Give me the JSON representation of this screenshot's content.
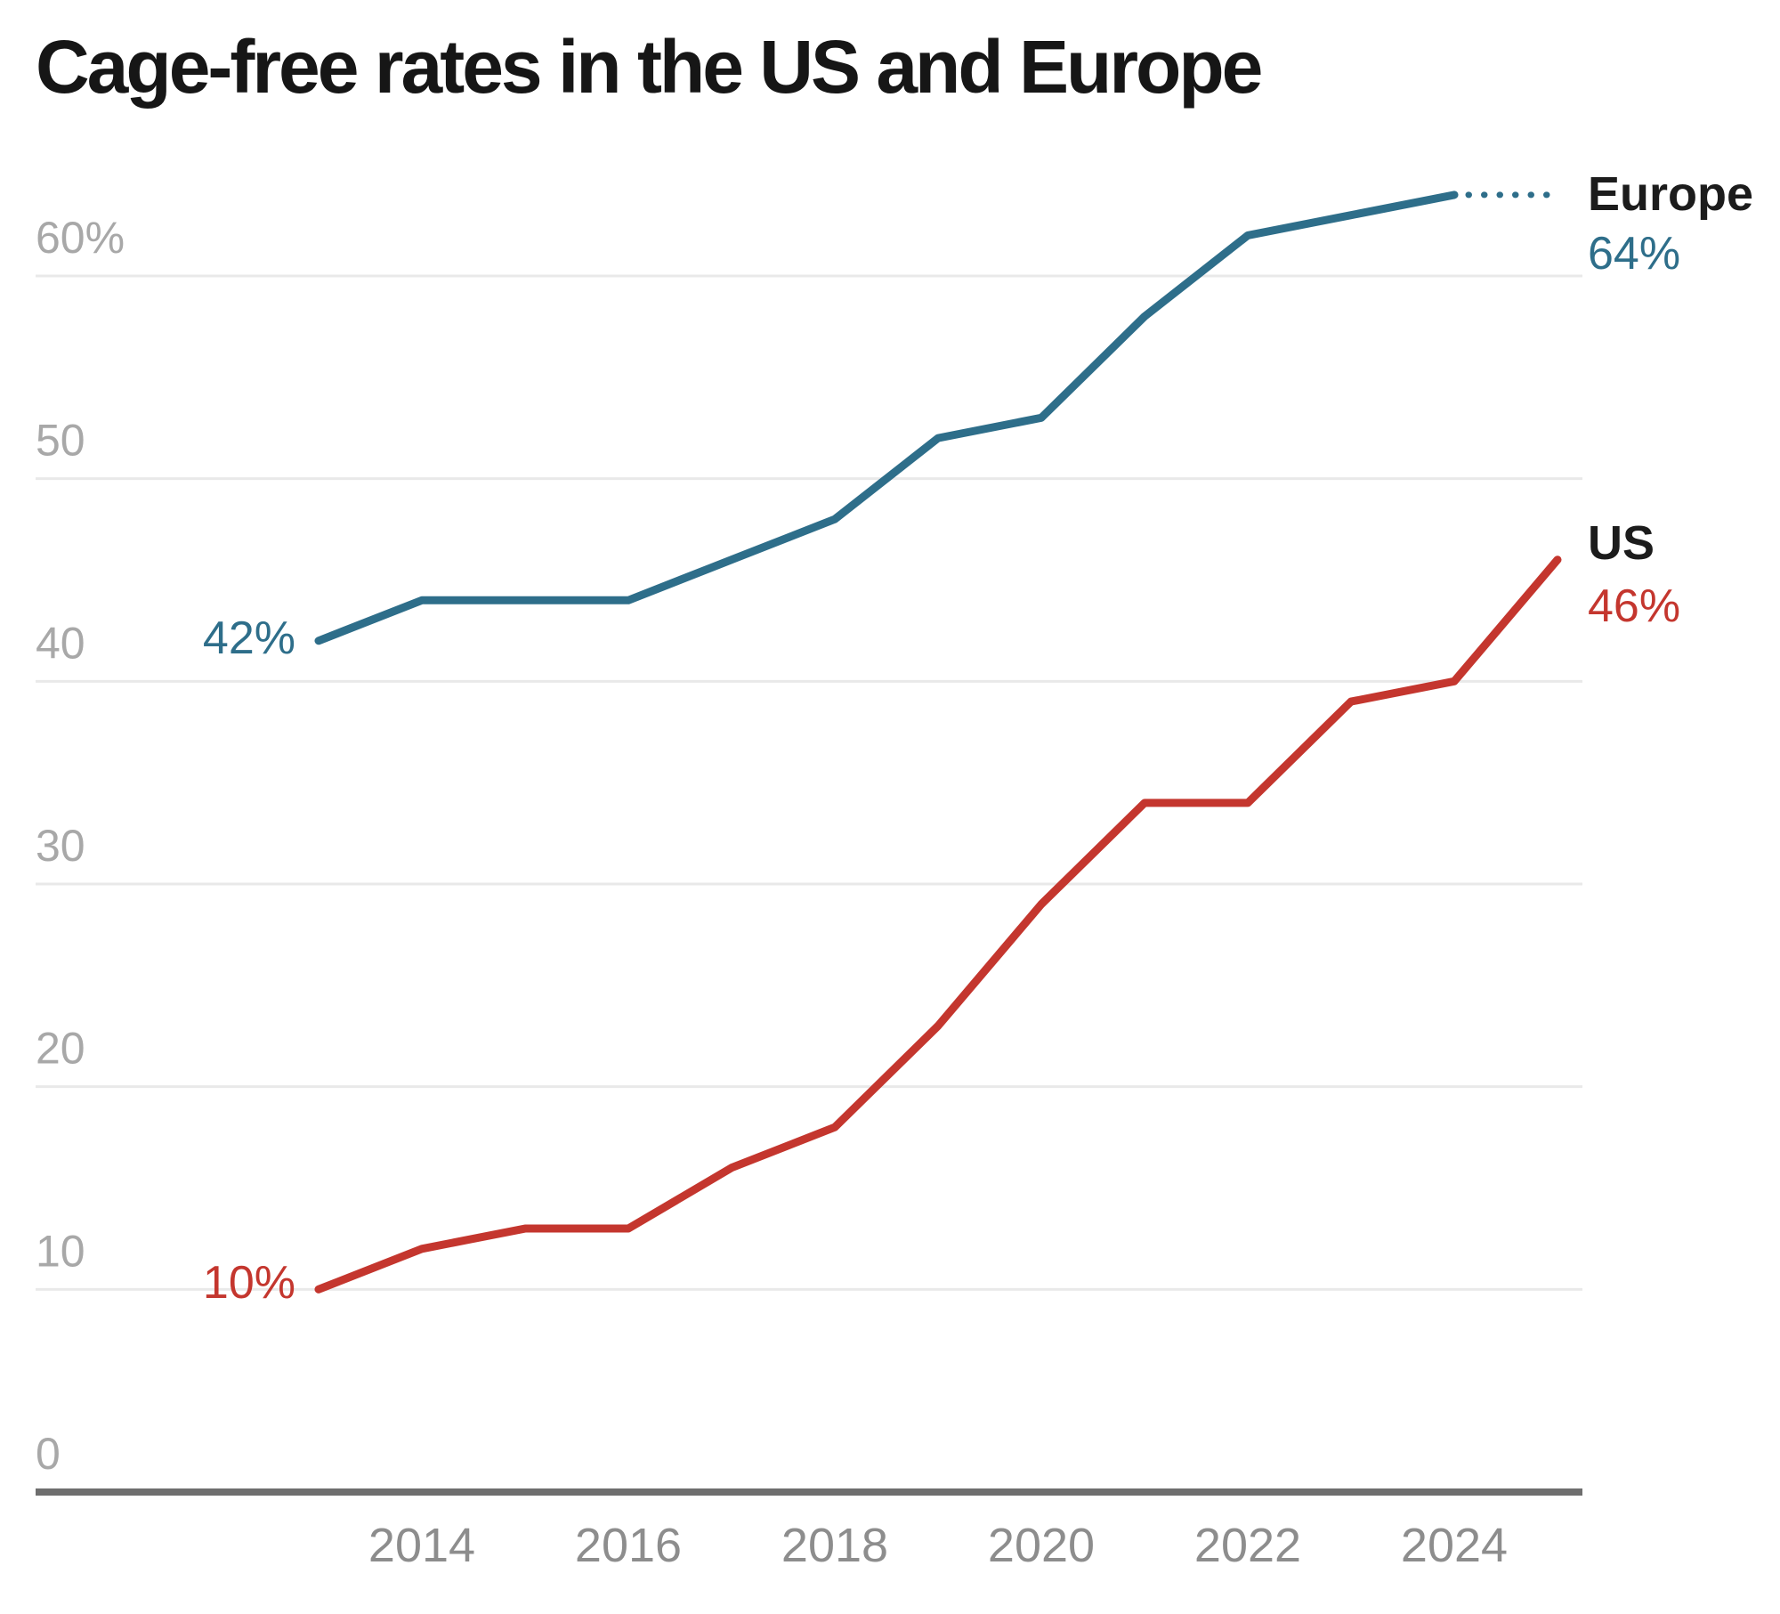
{
  "title": "Cage-free rates in the US and Europe",
  "colors": {
    "europe_line": "#2e6e8a",
    "us_line": "#c4362e",
    "title_text": "#161616",
    "y_tick_text": "#a8a8a8",
    "x_tick_text": "#8d8d8d",
    "gridline": "#e9e9e9",
    "axis_line": "#6e6e6e",
    "background": "#ffffff"
  },
  "chart_data": {
    "type": "line",
    "title": "Cage-free rates in the US and Europe",
    "xlabel": "",
    "ylabel": "",
    "xlim": [
      2013,
      2025
    ],
    "ylim": [
      0,
      66
    ],
    "grid": "horizontal-only",
    "legend_position": "right-end-of-lines",
    "x_ticks": [
      {
        "value": 2014,
        "label": "2014"
      },
      {
        "value": 2016,
        "label": "2016"
      },
      {
        "value": 2018,
        "label": "2018"
      },
      {
        "value": 2020,
        "label": "2020"
      },
      {
        "value": 2022,
        "label": "2022"
      },
      {
        "value": 2024,
        "label": "2024"
      }
    ],
    "y_ticks": [
      {
        "value": 0,
        "label": "0"
      },
      {
        "value": 10,
        "label": "10"
      },
      {
        "value": 20,
        "label": "20"
      },
      {
        "value": 30,
        "label": "30"
      },
      {
        "value": 40,
        "label": "40"
      },
      {
        "value": 50,
        "label": "50"
      },
      {
        "value": 60,
        "label": "60%"
      }
    ],
    "series": [
      {
        "name": "Europe",
        "color": "#2e6e8a",
        "start_label": "42%",
        "end_label": "64%",
        "years": [
          2013,
          2014,
          2015,
          2016,
          2017,
          2018,
          2019,
          2020,
          2021,
          2022,
          2023,
          2024
        ],
        "values": [
          42,
          44,
          44,
          44,
          46,
          48,
          52,
          53,
          58,
          62,
          63,
          64
        ],
        "projection": {
          "style": "dotted",
          "years": [
            2024,
            2025
          ],
          "values": [
            64,
            64
          ]
        }
      },
      {
        "name": "US",
        "color": "#c4362e",
        "start_label": "10%",
        "end_label": "46%",
        "years": [
          2013,
          2014,
          2015,
          2016,
          2017,
          2018,
          2019,
          2020,
          2021,
          2022,
          2023,
          2024,
          2025
        ],
        "values": [
          10,
          12,
          13,
          13,
          16,
          18,
          23,
          29,
          34,
          34,
          39,
          40,
          46
        ],
        "projection": null
      }
    ]
  }
}
